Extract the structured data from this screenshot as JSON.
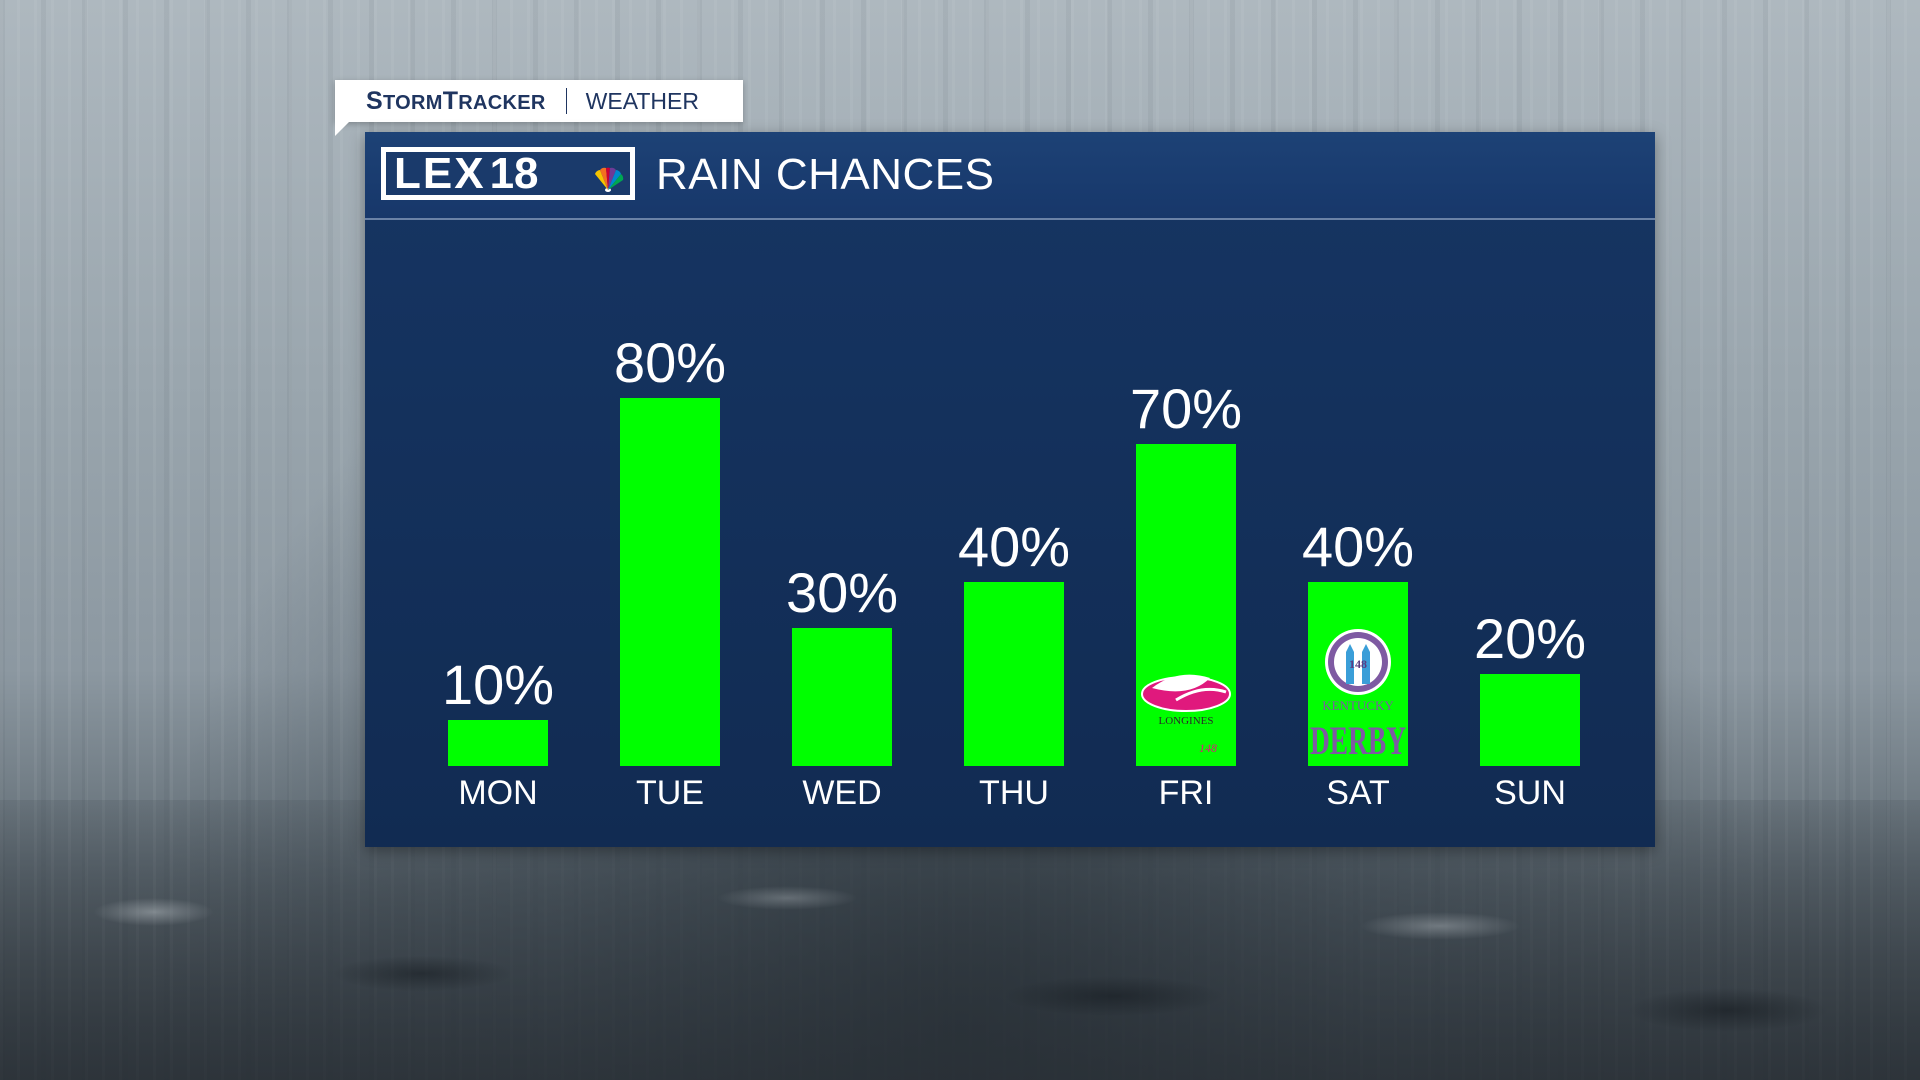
{
  "brand": {
    "storm_cap_1": "S",
    "storm_rest_1": "TORM",
    "storm_cap_2": "T",
    "storm_rest_2": "RACKER",
    "weather": "WEATHER"
  },
  "logo": {
    "text_lex": "LEX",
    "text_num": "18",
    "network_icon": "nbc-peacock-icon"
  },
  "header": {
    "title": "RAIN CHANCES"
  },
  "badges": {
    "fri": {
      "line1": "LONGINES",
      "line2": "148"
    },
    "sat": {
      "numeral": "148",
      "line1": "KENTUCKY",
      "line2": "DERBY"
    }
  },
  "colors": {
    "bar": "#00ff00",
    "panel": "#143260",
    "header": "#1b3e72"
  },
  "chart_data": {
    "type": "bar",
    "title": "RAIN CHANCES",
    "categories": [
      "MON",
      "TUE",
      "WED",
      "THU",
      "FRI",
      "SAT",
      "SUN"
    ],
    "values": [
      10,
      80,
      30,
      40,
      70,
      40,
      20
    ],
    "data_labels": [
      "10%",
      "80%",
      "30%",
      "40%",
      "70%",
      "40%",
      "20%"
    ],
    "unit": "%",
    "ylim": [
      0,
      100
    ],
    "grid": false,
    "legend": "none"
  }
}
